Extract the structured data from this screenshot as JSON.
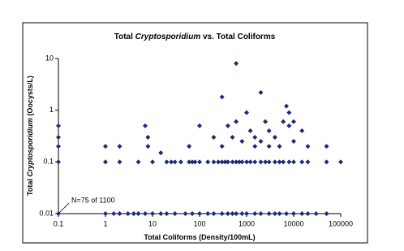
{
  "chart_data": {
    "type": "scatter",
    "title": [
      {
        "text": "Total ",
        "italic": false
      },
      {
        "text": "Cryptosporidium",
        "italic": true
      },
      {
        "text": " vs. Total Coliforms",
        "italic": false
      }
    ],
    "x_label": [
      {
        "text": "Total Coliforms (Density/100mL)",
        "italic": false
      }
    ],
    "y_label": [
      {
        "text": "Total ",
        "italic": false
      },
      {
        "text": "Cryptosporidium",
        "italic": true
      },
      {
        "text": " (Oocysts/L)",
        "italic": false
      }
    ],
    "annotation": "N=75 of 1100",
    "xlog": true,
    "ylog": true,
    "xlim": [
      0.1,
      100000
    ],
    "ylim": [
      0.01,
      10
    ],
    "xticks": [
      0.1,
      1,
      10,
      100,
      1000,
      10000,
      100000
    ],
    "yticks": [
      0.01,
      0.1,
      1,
      10
    ],
    "color": "#1c2a78",
    "x": [
      0.1,
      1,
      1.5,
      2,
      3,
      4,
      5,
      7,
      10,
      15,
      20,
      30,
      50,
      70,
      100,
      150,
      200,
      300,
      400,
      500,
      600,
      800,
      1000,
      1500,
      2000,
      3000,
      4000,
      5000,
      7000,
      10000,
      15000,
      20000,
      30000,
      50000,
      0.1,
      1,
      2,
      5,
      10,
      20,
      25,
      30,
      40,
      60,
      70,
      80,
      100,
      150,
      200,
      250,
      300,
      350,
      400,
      500,
      600,
      700,
      800,
      1000,
      1200,
      1500,
      2000,
      2500,
      3000,
      4000,
      5000,
      6000,
      8000,
      10000,
      15000,
      20000,
      50000,
      100000,
      0.1,
      0.1,
      0.1,
      1,
      2,
      7,
      8,
      8,
      15,
      60,
      100,
      200,
      300,
      300,
      400,
      500,
      600,
      600,
      800,
      1000,
      1200,
      1500,
      1500,
      2000,
      2000,
      2500,
      3000,
      3000,
      4000,
      5000,
      6000,
      7000,
      8000,
      8000,
      10000,
      10000,
      15000,
      20000,
      50000
    ],
    "y": [
      0.01,
      0.01,
      0.01,
      0.01,
      0.01,
      0.01,
      0.01,
      0.01,
      0.01,
      0.01,
      0.01,
      0.01,
      0.01,
      0.01,
      0.01,
      0.01,
      0.01,
      0.01,
      0.01,
      0.01,
      0.01,
      0.01,
      0.01,
      0.01,
      0.01,
      0.01,
      0.01,
      0.01,
      0.01,
      0.01,
      0.01,
      0.01,
      0.01,
      0.01,
      0.1,
      0.1,
      0.1,
      0.1,
      0.1,
      0.1,
      0.1,
      0.1,
      0.1,
      0.1,
      0.1,
      0.1,
      0.1,
      0.1,
      0.1,
      0.1,
      0.1,
      0.1,
      0.1,
      0.1,
      0.1,
      0.1,
      0.1,
      0.1,
      0.1,
      0.1,
      0.1,
      0.1,
      0.1,
      0.1,
      0.1,
      0.1,
      0.1,
      0.1,
      0.1,
      0.1,
      0.1,
      0.1,
      0.5,
      0.3,
      0.2,
      0.2,
      0.2,
      0.5,
      0.3,
      0.2,
      0.15,
      0.2,
      0.5,
      0.3,
      1.8,
      0.2,
      0.5,
      0.3,
      8,
      0.6,
      0.25,
      0.9,
      0.4,
      0.3,
      0.2,
      2.2,
      0.25,
      0.6,
      0.4,
      0.2,
      0.3,
      0.2,
      0.6,
      1.2,
      0.9,
      0.5,
      0.6,
      0.25,
      0.4,
      0.2,
      0.2
    ]
  }
}
